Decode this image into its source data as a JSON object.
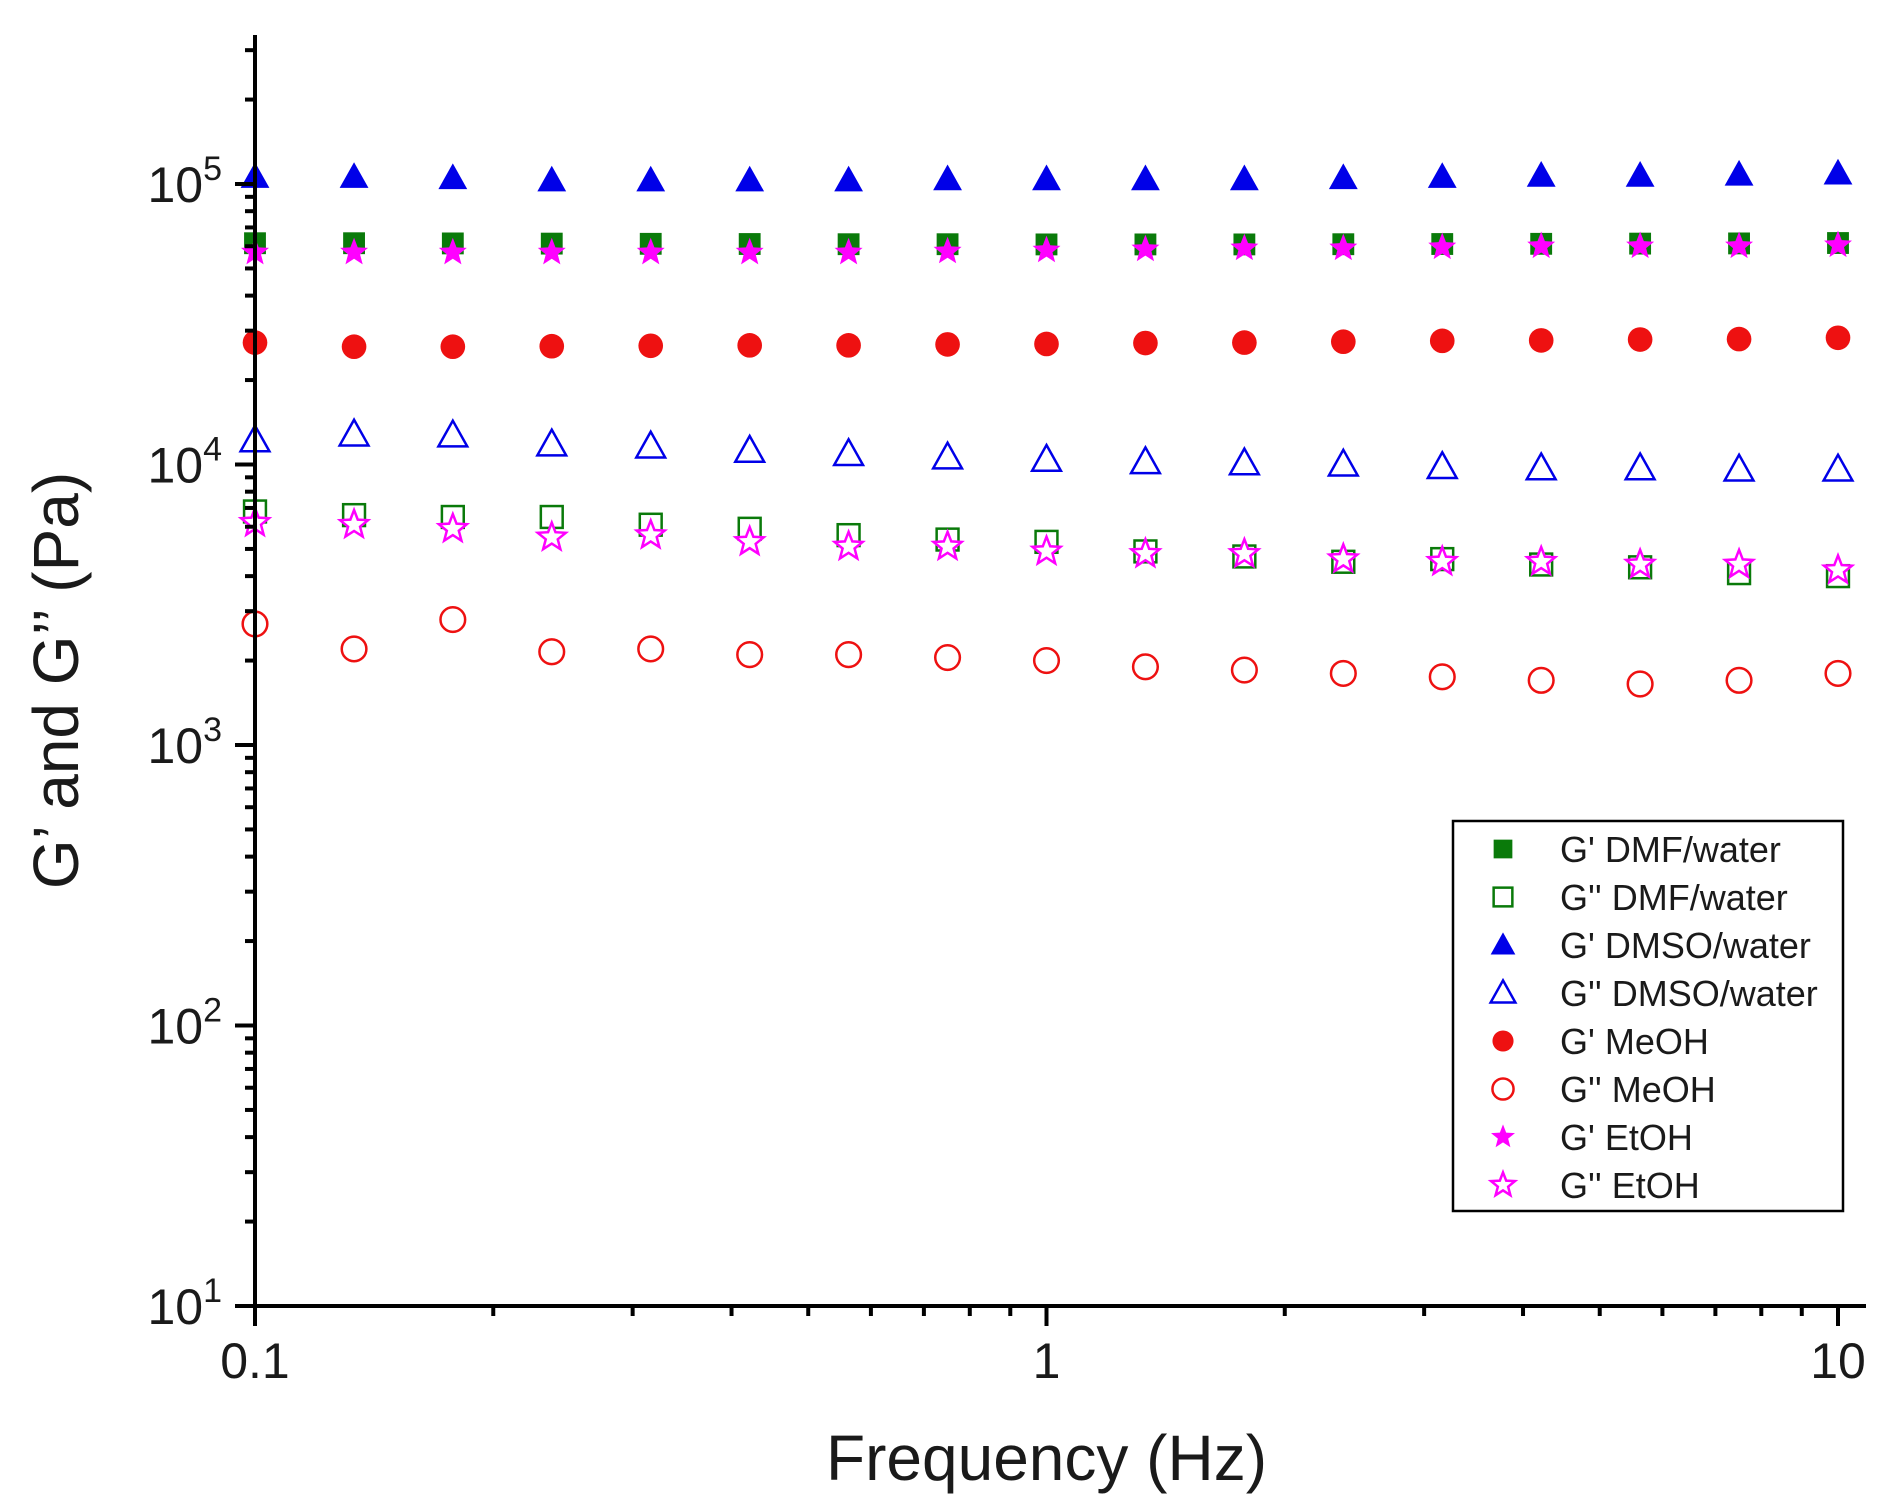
{
  "chart_data": {
    "type": "scatter",
    "title": "",
    "xlabel": "Frequency (Hz)",
    "ylabel": "G’ and G’’ (Pa)",
    "xscale": "log",
    "yscale": "log",
    "xlim": [
      0.1,
      10
    ],
    "ylim": [
      10,
      400000
    ],
    "grid": false,
    "legend_position": "bottom-right",
    "x_ticks": [
      {
        "value": 0.1,
        "label": "0.1"
      },
      {
        "value": 1,
        "label": "1"
      },
      {
        "value": 10,
        "label": "10"
      }
    ],
    "y_ticks": [
      {
        "value": 10,
        "base": "10",
        "exp": "1"
      },
      {
        "value": 100,
        "base": "10",
        "exp": "2"
      },
      {
        "value": 1000,
        "base": "10",
        "exp": "3"
      },
      {
        "value": 10000,
        "base": "10",
        "exp": "4"
      },
      {
        "value": 100000,
        "base": "10",
        "exp": "5"
      }
    ],
    "x": [
      0.1,
      0.1334,
      0.1778,
      0.2371,
      0.3162,
      0.4217,
      0.5623,
      0.7499,
      1.0,
      1.3335,
      1.7783,
      2.3714,
      3.1623,
      4.217,
      5.6234,
      7.4989,
      10.0
    ],
    "series": [
      {
        "name": "G' DMF/water",
        "marker": "square",
        "filled": true,
        "color": "#0a7a0a",
        "values": [
          61500,
          61500,
          61400,
          61300,
          61200,
          61100,
          61000,
          61000,
          60900,
          60900,
          60900,
          61000,
          61100,
          61200,
          61300,
          61400,
          61600
        ]
      },
      {
        "name": "G'' DMF/water",
        "marker": "square",
        "filled": false,
        "color": "#0a7a0a",
        "values": [
          6800,
          6600,
          6500,
          6500,
          6100,
          5900,
          5600,
          5400,
          5300,
          4900,
          4700,
          4500,
          4600,
          4400,
          4300,
          4100,
          4000
        ]
      },
      {
        "name": "G' DMSO/water",
        "marker": "triangle",
        "filled": true,
        "color": "#0000e8",
        "values": [
          106000,
          106000,
          105000,
          103000,
          103000,
          103000,
          103000,
          104000,
          104000,
          104000,
          104000,
          105000,
          106000,
          107000,
          107000,
          108000,
          109000
        ]
      },
      {
        "name": "G'' DMSO/water",
        "marker": "triangle",
        "filled": false,
        "color": "#0000e8",
        "values": [
          12200,
          12800,
          12700,
          11800,
          11600,
          11200,
          10900,
          10600,
          10400,
          10200,
          10100,
          10000,
          9800,
          9700,
          9700,
          9600,
          9600
        ]
      },
      {
        "name": "G' MeOH",
        "marker": "circle",
        "filled": true,
        "color": "#ee1111",
        "values": [
          27200,
          26300,
          26300,
          26400,
          26500,
          26600,
          26600,
          26800,
          26900,
          27100,
          27200,
          27400,
          27600,
          27700,
          27900,
          28000,
          28300
        ]
      },
      {
        "name": "G'' MeOH",
        "marker": "circle",
        "filled": false,
        "color": "#ee1111",
        "values": [
          2700,
          2200,
          2800,
          2150,
          2200,
          2100,
          2100,
          2050,
          2000,
          1900,
          1850,
          1800,
          1750,
          1700,
          1650,
          1700,
          1800
        ]
      },
      {
        "name": "G' EtOH",
        "marker": "star",
        "filled": true,
        "color": "#ff00ff",
        "values": [
          57000,
          57000,
          57000,
          57000,
          57000,
          57000,
          57000,
          57500,
          58000,
          58500,
          59000,
          59000,
          59500,
          60000,
          60000,
          60000,
          60500
        ]
      },
      {
        "name": "G'' EtOH",
        "marker": "star",
        "filled": false,
        "color": "#ff00ff",
        "values": [
          6200,
          6100,
          5900,
          5500,
          5600,
          5300,
          5100,
          5100,
          4900,
          4800,
          4800,
          4600,
          4500,
          4500,
          4400,
          4400,
          4200
        ]
      }
    ]
  }
}
